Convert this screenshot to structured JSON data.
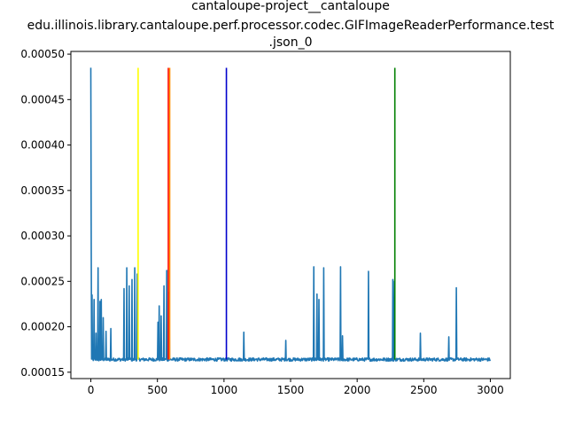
{
  "chart_data": {
    "type": "line",
    "title_lines": [
      "cantaloupe-project__cantaloupe",
      "edu.illinois.library.cantaloupe.perf.processor.codec.GIFImageReaderPerformance.test",
      ".json_0"
    ],
    "xlabel": "",
    "ylabel": "",
    "xlim": [
      -150,
      3150
    ],
    "ylim": [
      0.000143,
      0.000503
    ],
    "x_ticks": [
      0,
      500,
      1000,
      1500,
      2000,
      2500,
      3000
    ],
    "x_tick_labels": [
      "0",
      "500",
      "1000",
      "1500",
      "2000",
      "2500",
      "3000"
    ],
    "y_ticks": [
      0.00015,
      0.0002,
      0.00025,
      0.0003,
      0.00035,
      0.0004,
      0.00045,
      0.0005
    ],
    "y_tick_labels": [
      "0.00015",
      "0.00020",
      "0.00025",
      "0.00030",
      "0.00035",
      "0.00040",
      "0.00045",
      "0.00050"
    ],
    "grid": false,
    "series": [
      {
        "color": "#1f77b4",
        "baseline": 0.000164,
        "x_max": 3000,
        "spikes": [
          [
            0,
            0.000485
          ],
          [
            5,
            0.00028
          ],
          [
            10,
            0.000235
          ],
          [
            25,
            0.00023
          ],
          [
            40,
            0.000193
          ],
          [
            55,
            0.000265
          ],
          [
            70,
            0.000228
          ],
          [
            80,
            0.00023
          ],
          [
            95,
            0.00021
          ],
          [
            115,
            0.000195
          ],
          [
            150,
            0.000198
          ],
          [
            250,
            0.000242
          ],
          [
            270,
            0.000265
          ],
          [
            290,
            0.000245
          ],
          [
            310,
            0.000252
          ],
          [
            330,
            0.000265
          ],
          [
            350,
            0.000258
          ],
          [
            505,
            0.000205
          ],
          [
            515,
            0.000223
          ],
          [
            530,
            0.000212
          ],
          [
            550,
            0.000245
          ],
          [
            570,
            0.000262
          ],
          [
            590,
            0.000238
          ],
          [
            1150,
            0.000194
          ],
          [
            1465,
            0.000185
          ],
          [
            1675,
            0.000266
          ],
          [
            1700,
            0.000236
          ],
          [
            1715,
            0.00023
          ],
          [
            1750,
            0.000265
          ],
          [
            1875,
            0.000266
          ],
          [
            1890,
            0.00019
          ],
          [
            2085,
            0.000261
          ],
          [
            2270,
            0.000252
          ],
          [
            2280,
            0.00025
          ],
          [
            2475,
            0.000193
          ],
          [
            2690,
            0.000189
          ],
          [
            2745,
            0.000243
          ]
        ]
      }
    ],
    "vertical_lines": [
      {
        "x": 355,
        "color": "#ffff00"
      },
      {
        "x": 582,
        "color": "#ff0000"
      },
      {
        "x": 592,
        "color": "#ff8c00"
      },
      {
        "x": 1018,
        "color": "#0000cd"
      },
      {
        "x": 2283,
        "color": "#008000"
      }
    ],
    "vertical_line_range": [
      0.000164,
      0.000485
    ]
  }
}
